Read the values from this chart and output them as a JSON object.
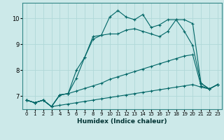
{
  "xlabel": "Humidex (Indice chaleur)",
  "bg_color": "#cce9e9",
  "grid_color": "#b0d8d8",
  "line_color": "#006666",
  "xlim": [
    -0.5,
    23.5
  ],
  "ylim": [
    6.5,
    10.6
  ],
  "yticks": [
    7,
    8,
    9,
    10
  ],
  "xticks": [
    0,
    1,
    2,
    3,
    4,
    5,
    6,
    7,
    8,
    9,
    10,
    11,
    12,
    13,
    14,
    15,
    16,
    17,
    18,
    19,
    20,
    21,
    22,
    23
  ],
  "series": [
    {
      "x": [
        0,
        1,
        2,
        3,
        4,
        5,
        6,
        7,
        8,
        9,
        10,
        11,
        12,
        13,
        14,
        15,
        16,
        17,
        18,
        19,
        20,
        21,
        22,
        23
      ],
      "y": [
        6.85,
        6.75,
        6.85,
        6.6,
        6.65,
        6.7,
        6.75,
        6.8,
        6.85,
        6.9,
        6.95,
        7.0,
        7.05,
        7.1,
        7.15,
        7.2,
        7.25,
        7.3,
        7.35,
        7.4,
        7.45,
        7.35,
        7.28,
        7.45
      ]
    },
    {
      "x": [
        0,
        1,
        2,
        3,
        4,
        5,
        6,
        7,
        8,
        9,
        10,
        11,
        12,
        13,
        14,
        15,
        16,
        17,
        18,
        19,
        20,
        21,
        22,
        23
      ],
      "y": [
        6.85,
        6.75,
        6.85,
        6.6,
        7.05,
        7.1,
        7.2,
        7.3,
        7.4,
        7.5,
        7.65,
        7.75,
        7.85,
        7.95,
        8.05,
        8.15,
        8.25,
        8.35,
        8.45,
        8.55,
        8.6,
        7.4,
        7.28,
        7.45
      ]
    },
    {
      "x": [
        0,
        1,
        2,
        3,
        4,
        5,
        6,
        7,
        8,
        9,
        10,
        11,
        12,
        13,
        14,
        15,
        16,
        17,
        18,
        19,
        20,
        21,
        22,
        23
      ],
      "y": [
        6.85,
        6.75,
        6.85,
        6.6,
        7.05,
        7.1,
        8.0,
        8.5,
        9.2,
        9.35,
        9.4,
        9.4,
        9.55,
        9.6,
        9.5,
        9.4,
        9.3,
        9.5,
        9.95,
        9.5,
        8.95,
        7.5,
        7.28,
        7.45
      ]
    },
    {
      "x": [
        0,
        1,
        2,
        3,
        4,
        5,
        6,
        7,
        8,
        9,
        10,
        11,
        12,
        13,
        14,
        15,
        16,
        17,
        18,
        19,
        20,
        21,
        22,
        23
      ],
      "y": [
        6.85,
        6.75,
        6.85,
        6.6,
        7.05,
        7.1,
        7.7,
        8.5,
        9.3,
        9.35,
        10.05,
        10.3,
        10.05,
        9.95,
        10.15,
        9.65,
        9.75,
        9.95,
        9.95,
        9.95,
        9.8,
        7.5,
        7.28,
        7.45
      ]
    }
  ]
}
